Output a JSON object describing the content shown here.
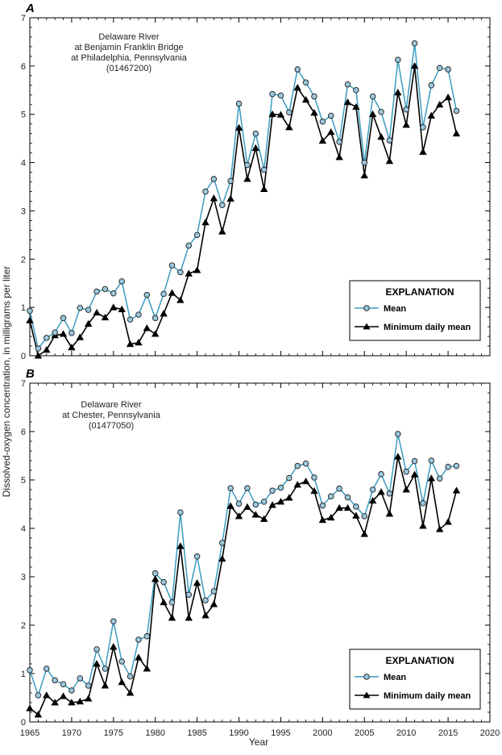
{
  "chart_data": [
    {
      "type": "line",
      "panel_label": "A",
      "site_lines": [
        "Delaware River",
        "at Benjamin Franklin Bridge",
        "at Philadelphia, Pennsylvania",
        "(01467200)"
      ],
      "xlim": [
        1965,
        2020
      ],
      "ylim": [
        0,
        7
      ],
      "x_ticks": [
        1965,
        1970,
        1975,
        1980,
        1985,
        1990,
        1995,
        2000,
        2005,
        2010,
        2015,
        2020
      ],
      "y_ticks": [
        0,
        1,
        2,
        3,
        4,
        5,
        6,
        7
      ],
      "x": [
        1965,
        1966,
        1967,
        1968,
        1969,
        1970,
        1971,
        1972,
        1973,
        1974,
        1975,
        1976,
        1977,
        1978,
        1979,
        1980,
        1981,
        1982,
        1983,
        1984,
        1985,
        1986,
        1987,
        1988,
        1989,
        1990,
        1991,
        1992,
        1993,
        1994,
        1995,
        1996,
        1997,
        1998,
        1999,
        2000,
        2001,
        2002,
        2003,
        2004,
        2005,
        2006,
        2007,
        2008,
        2009,
        2010,
        2011,
        2012,
        2013,
        2014,
        2015,
        2016
      ],
      "series": [
        {
          "name": "Mean",
          "color": "#3a9cc0",
          "marker": "circle",
          "values": [
            0.93,
            0.15,
            0.37,
            0.48,
            0.78,
            0.47,
            0.99,
            0.95,
            1.33,
            1.38,
            1.29,
            1.54,
            0.75,
            0.85,
            1.26,
            0.78,
            1.28,
            1.87,
            1.73,
            2.28,
            2.5,
            3.4,
            3.66,
            3.12,
            3.62,
            5.22,
            3.95,
            4.6,
            3.85,
            5.42,
            5.39,
            5.04,
            5.93,
            5.66,
            5.37,
            4.85,
            4.97,
            4.43,
            5.62,
            5.5,
            4.0,
            5.37,
            5.05,
            4.46,
            6.13,
            5.1,
            6.47,
            4.73,
            5.6,
            5.96,
            5.93,
            5.07
          ]
        },
        {
          "name": "Minimum daily mean",
          "color": "#000000",
          "marker": "triangle",
          "values": [
            0.73,
            0.0,
            0.12,
            0.42,
            0.45,
            0.17,
            0.38,
            0.66,
            0.89,
            0.79,
            1.0,
            0.96,
            0.24,
            0.27,
            0.57,
            0.45,
            0.87,
            1.3,
            1.15,
            1.7,
            1.77,
            2.76,
            3.26,
            2.57,
            3.25,
            4.72,
            3.66,
            4.3,
            3.45,
            5.0,
            4.99,
            4.73,
            5.55,
            5.3,
            5.03,
            4.45,
            4.63,
            4.11,
            5.25,
            5.15,
            3.73,
            5.0,
            4.53,
            4.03,
            5.45,
            4.78,
            6.0,
            4.22,
            4.97,
            5.2,
            5.35,
            4.6
          ]
        }
      ],
      "legend": {
        "title": "EXPLANATION",
        "position": "bottom-right"
      }
    },
    {
      "type": "line",
      "panel_label": "B",
      "site_lines": [
        "Delaware River",
        "at Chester, Pennsylvania",
        "(01477050)"
      ],
      "xlim": [
        1965,
        2020
      ],
      "ylim": [
        0,
        7
      ],
      "x_ticks": [
        1965,
        1970,
        1975,
        1980,
        1985,
        1990,
        1995,
        2000,
        2005,
        2010,
        2015,
        2020
      ],
      "y_ticks": [
        0,
        1,
        2,
        3,
        4,
        5,
        6,
        7
      ],
      "x": [
        1965,
        1966,
        1967,
        1968,
        1969,
        1970,
        1971,
        1972,
        1973,
        1974,
        1975,
        1976,
        1977,
        1978,
        1979,
        1980,
        1981,
        1982,
        1983,
        1984,
        1985,
        1986,
        1987,
        1988,
        1989,
        1990,
        1991,
        1992,
        1993,
        1994,
        1995,
        1996,
        1997,
        1998,
        1999,
        2000,
        2001,
        2002,
        2003,
        2004,
        2005,
        2006,
        2007,
        2008,
        2009,
        2010,
        2011,
        2012,
        2013,
        2014,
        2015,
        2016
      ],
      "series": [
        {
          "name": "Mean",
          "color": "#3a9cc0",
          "marker": "circle",
          "values": [
            1.07,
            0.55,
            1.1,
            0.86,
            0.78,
            0.65,
            0.9,
            0.75,
            1.5,
            1.1,
            2.08,
            1.25,
            0.94,
            1.7,
            1.77,
            3.07,
            2.89,
            2.47,
            4.33,
            2.63,
            3.42,
            2.51,
            2.7,
            3.7,
            4.83,
            4.51,
            4.83,
            4.49,
            4.55,
            4.78,
            4.84,
            5.04,
            5.29,
            5.34,
            5.05,
            4.47,
            4.66,
            4.82,
            4.64,
            4.45,
            4.25,
            4.8,
            5.12,
            4.72,
            5.95,
            5.17,
            5.39,
            4.52,
            5.4,
            5.03,
            5.27,
            5.29
          ]
        },
        {
          "name": "Minimum daily mean",
          "color": "#000000",
          "marker": "triangle",
          "values": [
            0.28,
            0.15,
            0.55,
            0.4,
            0.53,
            0.4,
            0.42,
            0.48,
            1.2,
            0.75,
            1.55,
            0.82,
            0.6,
            1.33,
            1.1,
            2.95,
            2.47,
            2.15,
            3.63,
            2.15,
            2.87,
            2.2,
            2.43,
            3.37,
            4.46,
            4.25,
            4.44,
            4.28,
            4.19,
            4.48,
            4.55,
            4.63,
            4.9,
            4.97,
            4.77,
            4.17,
            4.22,
            4.42,
            4.42,
            4.26,
            3.88,
            4.57,
            4.75,
            4.3,
            5.48,
            4.8,
            5.11,
            4.05,
            5.03,
            3.98,
            4.13,
            4.78
          ]
        }
      ],
      "legend": {
        "title": "EXPLANATION",
        "position": "bottom-right"
      }
    }
  ],
  "shared": {
    "xlabel": "Year",
    "ylabel": "Dissolved-oxygen concentration, in milligrams per liter"
  }
}
